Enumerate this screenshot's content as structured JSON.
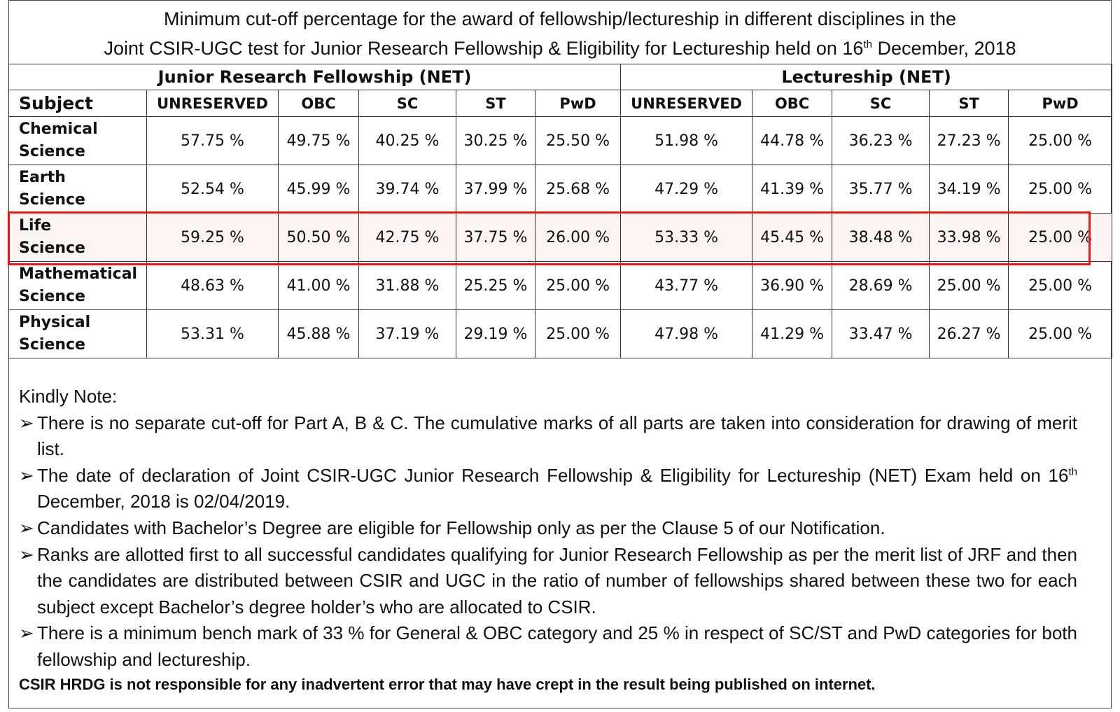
{
  "title": {
    "line1": "Minimum cut-off percentage for the award of fellowship/lectureship in different disciplines in the",
    "line2_prefix": "Joint CSIR-UGC test for  Junior Research Fellowship & Eligibility for Lectureship held on 16",
    "line2_sup": "th",
    "line2_suffix": " December, 2018"
  },
  "table": {
    "groups": [
      "Junior Research Fellowship (NET)",
      "Lectureship (NET)"
    ],
    "subject_header": "Subject",
    "columns": [
      "UNRESERVED",
      "OBC",
      "SC",
      "ST",
      "PwD",
      "UNRESERVED",
      "OBC",
      "SC",
      "ST",
      "PwD"
    ],
    "rows": [
      {
        "subject_line1": "Chemical",
        "subject_line2": "Science",
        "values": [
          "57.75 %",
          "49.75 %",
          "40.25 %",
          "30.25 %",
          "25.50 %",
          "51.98 %",
          "44.78 %",
          "36.23 %",
          "27.23 %",
          "25.00 %"
        ]
      },
      {
        "subject_line1": "Earth",
        "subject_line2": "Science",
        "values": [
          "52.54 %",
          "45.99 %",
          "39.74 %",
          "37.99 %",
          "25.68 %",
          "47.29 %",
          "41.39 %",
          "35.77 %",
          "34.19 %",
          "25.00 %"
        ]
      },
      {
        "subject_line1": "Life",
        "subject_line2": "Science",
        "values": [
          "59.25 %",
          "50.50 %",
          "42.75 %",
          "37.75 %",
          "26.00 %",
          "53.33 %",
          "45.45 %",
          "38.48 %",
          "33.98 %",
          "25.00 %"
        ]
      },
      {
        "subject_line1": "Mathematical",
        "subject_line2": "Science",
        "values": [
          "48.63 %",
          "41.00 %",
          "31.88 %",
          "25.25 %",
          "25.00 %",
          "43.77 %",
          "36.90 %",
          "28.69 %",
          "25.00 %",
          "25.00 %"
        ]
      },
      {
        "subject_line1": "Physical",
        "subject_line2": "Science",
        "values": [
          "53.31 %",
          "45.88 %",
          "37.19 %",
          "29.19 %",
          "25.00 %",
          "47.98 %",
          "41.29 %",
          "33.47 %",
          "26.27 %",
          "25.00 %"
        ]
      }
    ],
    "highlight_color": "#e01a1a"
  },
  "notes": {
    "heading": "Kindly Note:",
    "bullet": "➢",
    "items": [
      {
        "text": "There is no separate cut-off for Part A, B & C. The cumulative marks of all parts are taken into consideration for drawing of merit list."
      },
      {
        "text_prefix": "The date of declaration of Joint CSIR-UGC Junior Research Fellowship & Eligibility for Lectureship (NET) Exam held on 16",
        "sup": "th",
        "text_suffix": " December, 2018 is 02/04/2019."
      },
      {
        "text": "Candidates with Bachelor’s Degree are eligible for Fellowship only as per the Clause 5 of our Notification."
      },
      {
        "text": "Ranks are allotted first to all successful candidates qualifying for Junior Research Fellowship  as per the merit list of JRF and then the candidates are distributed between CSIR and UGC in the ratio of number of fellowships shared between these two for each subject except Bachelor’s degree holder’s who are allocated to CSIR."
      },
      {
        "text": "There is a minimum bench mark of 33 % for General & OBC category and 25 % in respect of SC/ST and PwD categories for both fellowship and lectureship."
      }
    ]
  },
  "disclaimer": "CSIR HRDG is not responsible for any inadvertent error that may have crept in the result being published on internet."
}
